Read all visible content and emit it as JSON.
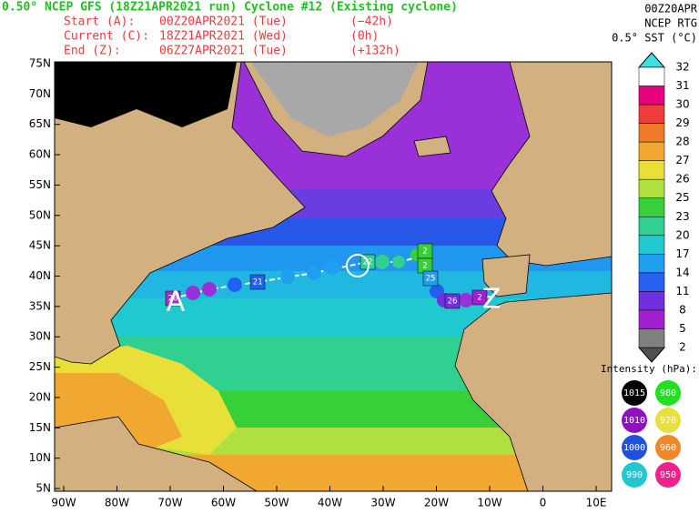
{
  "header": {
    "title": "0.50° NCEP GFS (18Z21APR2021 run) Cyclone #12 (Existing cyclone)",
    "lines": [
      [
        "Start (A):",
        "00Z20APR2021 (Tue)",
        "(−42h)"
      ],
      [
        "Current (C):",
        "18Z21APR2021 (Wed)",
        "(0h)"
      ],
      [
        "End (Z):",
        "06Z27APR2021 (Tue)",
        "(+132h)"
      ]
    ]
  },
  "info": [
    "00Z20APR",
    "NCEP RTG",
    "0.5° SST (°C)"
  ],
  "lat_labels": [
    "75N",
    "70N",
    "65N",
    "60N",
    "55N",
    "50N",
    "45N",
    "40N",
    "35N",
    "30N",
    "25N",
    "20N",
    "15N",
    "10N",
    "5N"
  ],
  "lon_labels": [
    "90W",
    "80W",
    "70W",
    "60W",
    "50W",
    "40W",
    "30W",
    "20W",
    "10W",
    "0",
    "10E"
  ],
  "colorbar": {
    "labels": [
      "32",
      "31",
      "30",
      "29",
      "28",
      "27",
      "26",
      "25",
      "23",
      "20",
      "17",
      "14",
      "11",
      "8",
      "5",
      "2"
    ],
    "colors": [
      "#ffffff",
      "#e8007e",
      "#f03c3c",
      "#f07a28",
      "#f0a830",
      "#e8e038",
      "#b0e040",
      "#38d038",
      "#30d090",
      "#20c8d0",
      "#209ef0",
      "#2860f0",
      "#7030e0",
      "#a020d0",
      "#808080"
    ]
  },
  "intensity": {
    "title": "Intensity (hPa):",
    "items": [
      {
        "label": "1015",
        "color": "#000000"
      },
      {
        "label": "980",
        "color": "#20e020"
      },
      {
        "label": "1010",
        "color": "#9010c0"
      },
      {
        "label": "970",
        "color": "#e8e040"
      },
      {
        "label": "1000",
        "color": "#2050e0"
      },
      {
        "label": "960",
        "color": "#f08828"
      },
      {
        "label": "990",
        "color": "#20c8d0"
      },
      {
        "label": "950",
        "color": "#f0208c"
      }
    ]
  },
  "track": {
    "start": "A",
    "current": "C",
    "end": "Z",
    "labels": [
      "20",
      "21",
      "22",
      "2",
      "2",
      "25",
      "26",
      "2"
    ]
  }
}
